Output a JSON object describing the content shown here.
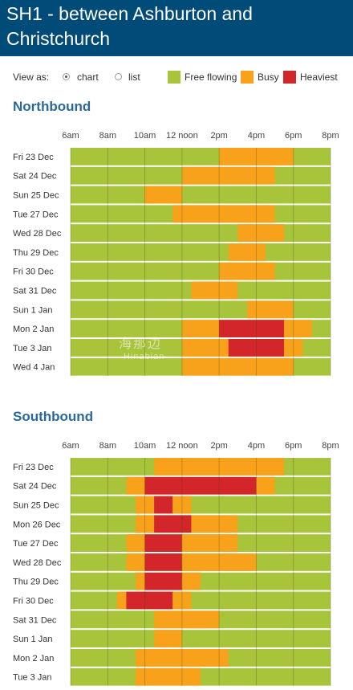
{
  "page": {
    "title": "SH1 - between Ashburton and Christchurch"
  },
  "controls": {
    "view_label": "View as:",
    "options": [
      {
        "label": "chart",
        "checked": true
      },
      {
        "label": "list",
        "checked": false
      }
    ]
  },
  "legend": [
    {
      "label": "Free flowing",
      "color": "#a7c43a"
    },
    {
      "label": "Busy",
      "color": "#f8a11a"
    },
    {
      "label": "Heaviest",
      "color": "#d2262b"
    }
  ],
  "watermark": {
    "text": "海那边",
    "sub": "Hinabian"
  },
  "chart_data": [
    {
      "type": "heatmap",
      "title": "Northbound",
      "x_tick_labels": [
        "6am",
        "8am",
        "10am",
        "12 noon",
        "2pm",
        "4pm",
        "6pm",
        "8pm"
      ],
      "x_ticks": [
        6,
        8,
        10,
        12,
        14,
        16,
        18,
        20
      ],
      "xlim": [
        6,
        20
      ],
      "colors": {
        "free": "#a7c43a",
        "busy": "#f8a11a",
        "heaviest": "#d2262b"
      },
      "rows": [
        {
          "day": "Fri 23 Dec",
          "segments": [
            {
              "start": 14,
              "end": 18,
              "level": "busy"
            }
          ]
        },
        {
          "day": "Sat 24 Dec",
          "segments": [
            {
              "start": 12,
              "end": 17,
              "level": "busy"
            }
          ]
        },
        {
          "day": "Sun 25 Dec",
          "segments": [
            {
              "start": 10,
              "end": 12,
              "level": "busy"
            }
          ]
        },
        {
          "day": "Tue 27 Dec",
          "segments": [
            {
              "start": 11.5,
              "end": 17,
              "level": "busy"
            }
          ]
        },
        {
          "day": "Wed 28 Dec",
          "segments": [
            {
              "start": 15,
              "end": 17.5,
              "level": "busy"
            }
          ]
        },
        {
          "day": "Thu 29 Dec",
          "segments": [
            {
              "start": 14.5,
              "end": 16.5,
              "level": "busy"
            }
          ]
        },
        {
          "day": "Fri 30 Dec",
          "segments": [
            {
              "start": 14,
              "end": 17,
              "level": "busy"
            }
          ]
        },
        {
          "day": "Sat 31 Dec",
          "segments": [
            {
              "start": 12.5,
              "end": 15,
              "level": "busy"
            }
          ]
        },
        {
          "day": "Sun 1 Jan",
          "segments": [
            {
              "start": 15.5,
              "end": 18,
              "level": "busy"
            }
          ]
        },
        {
          "day": "Mon 2 Jan",
          "segments": [
            {
              "start": 12,
              "end": 14,
              "level": "busy"
            },
            {
              "start": 14,
              "end": 17.5,
              "level": "heaviest"
            },
            {
              "start": 17.5,
              "end": 19,
              "level": "busy"
            }
          ]
        },
        {
          "day": "Tue 3 Jan",
          "segments": [
            {
              "start": 12,
              "end": 14.5,
              "level": "busy"
            },
            {
              "start": 14.5,
              "end": 17.5,
              "level": "heaviest"
            },
            {
              "start": 17.5,
              "end": 18.5,
              "level": "busy"
            }
          ]
        },
        {
          "day": "Wed 4 Jan",
          "segments": [
            {
              "start": 12,
              "end": 18,
              "level": "busy"
            }
          ]
        }
      ]
    },
    {
      "type": "heatmap",
      "title": "Southbound",
      "x_tick_labels": [
        "6am",
        "8am",
        "10am",
        "12 noon",
        "2pm",
        "4pm",
        "6pm",
        "8pm"
      ],
      "x_ticks": [
        6,
        8,
        10,
        12,
        14,
        16,
        18,
        20
      ],
      "xlim": [
        6,
        20
      ],
      "colors": {
        "free": "#a7c43a",
        "busy": "#f8a11a",
        "heaviest": "#d2262b"
      },
      "rows": [
        {
          "day": "Fri 23 Dec",
          "segments": [
            {
              "start": 10.5,
              "end": 17.5,
              "level": "busy"
            }
          ]
        },
        {
          "day": "Sat 24 Dec",
          "segments": [
            {
              "start": 9,
              "end": 10,
              "level": "busy"
            },
            {
              "start": 10,
              "end": 16,
              "level": "heaviest"
            },
            {
              "start": 16,
              "end": 17,
              "level": "busy"
            }
          ]
        },
        {
          "day": "Sun 25 Dec",
          "segments": [
            {
              "start": 9.5,
              "end": 10.5,
              "level": "busy"
            },
            {
              "start": 10.5,
              "end": 11.5,
              "level": "heaviest"
            },
            {
              "start": 11.5,
              "end": 12.5,
              "level": "busy"
            }
          ]
        },
        {
          "day": "Mon 26 Dec",
          "segments": [
            {
              "start": 9.5,
              "end": 10.5,
              "level": "busy"
            },
            {
              "start": 10.5,
              "end": 12.5,
              "level": "heaviest"
            },
            {
              "start": 12.5,
              "end": 15,
              "level": "busy"
            }
          ]
        },
        {
          "day": "Tue 27 Dec",
          "segments": [
            {
              "start": 9,
              "end": 10,
              "level": "busy"
            },
            {
              "start": 10,
              "end": 12,
              "level": "heaviest"
            },
            {
              "start": 12,
              "end": 15,
              "level": "busy"
            }
          ]
        },
        {
          "day": "Wed 28 Dec",
          "segments": [
            {
              "start": 9,
              "end": 10,
              "level": "busy"
            },
            {
              "start": 10,
              "end": 12,
              "level": "heaviest"
            },
            {
              "start": 12,
              "end": 16,
              "level": "busy"
            }
          ]
        },
        {
          "day": "Thu 29 Dec",
          "segments": [
            {
              "start": 9.5,
              "end": 10,
              "level": "busy"
            },
            {
              "start": 10,
              "end": 12,
              "level": "heaviest"
            },
            {
              "start": 12,
              "end": 13,
              "level": "busy"
            }
          ]
        },
        {
          "day": "Fri 30 Dec",
          "segments": [
            {
              "start": 8.5,
              "end": 9,
              "level": "busy"
            },
            {
              "start": 9,
              "end": 11.5,
              "level": "heaviest"
            },
            {
              "start": 11.5,
              "end": 12.5,
              "level": "busy"
            }
          ]
        },
        {
          "day": "Sat 31 Dec",
          "segments": [
            {
              "start": 10.5,
              "end": 14,
              "level": "busy"
            }
          ]
        },
        {
          "day": "Sun 1 Jan",
          "segments": [
            {
              "start": 10.5,
              "end": 12,
              "level": "busy"
            }
          ]
        },
        {
          "day": "Mon 2 Jan",
          "segments": [
            {
              "start": 9.5,
              "end": 14.5,
              "level": "busy"
            }
          ]
        },
        {
          "day": "Tue 3 Jan",
          "segments": [
            {
              "start": 9.5,
              "end": 13,
              "level": "busy"
            }
          ]
        }
      ]
    }
  ]
}
